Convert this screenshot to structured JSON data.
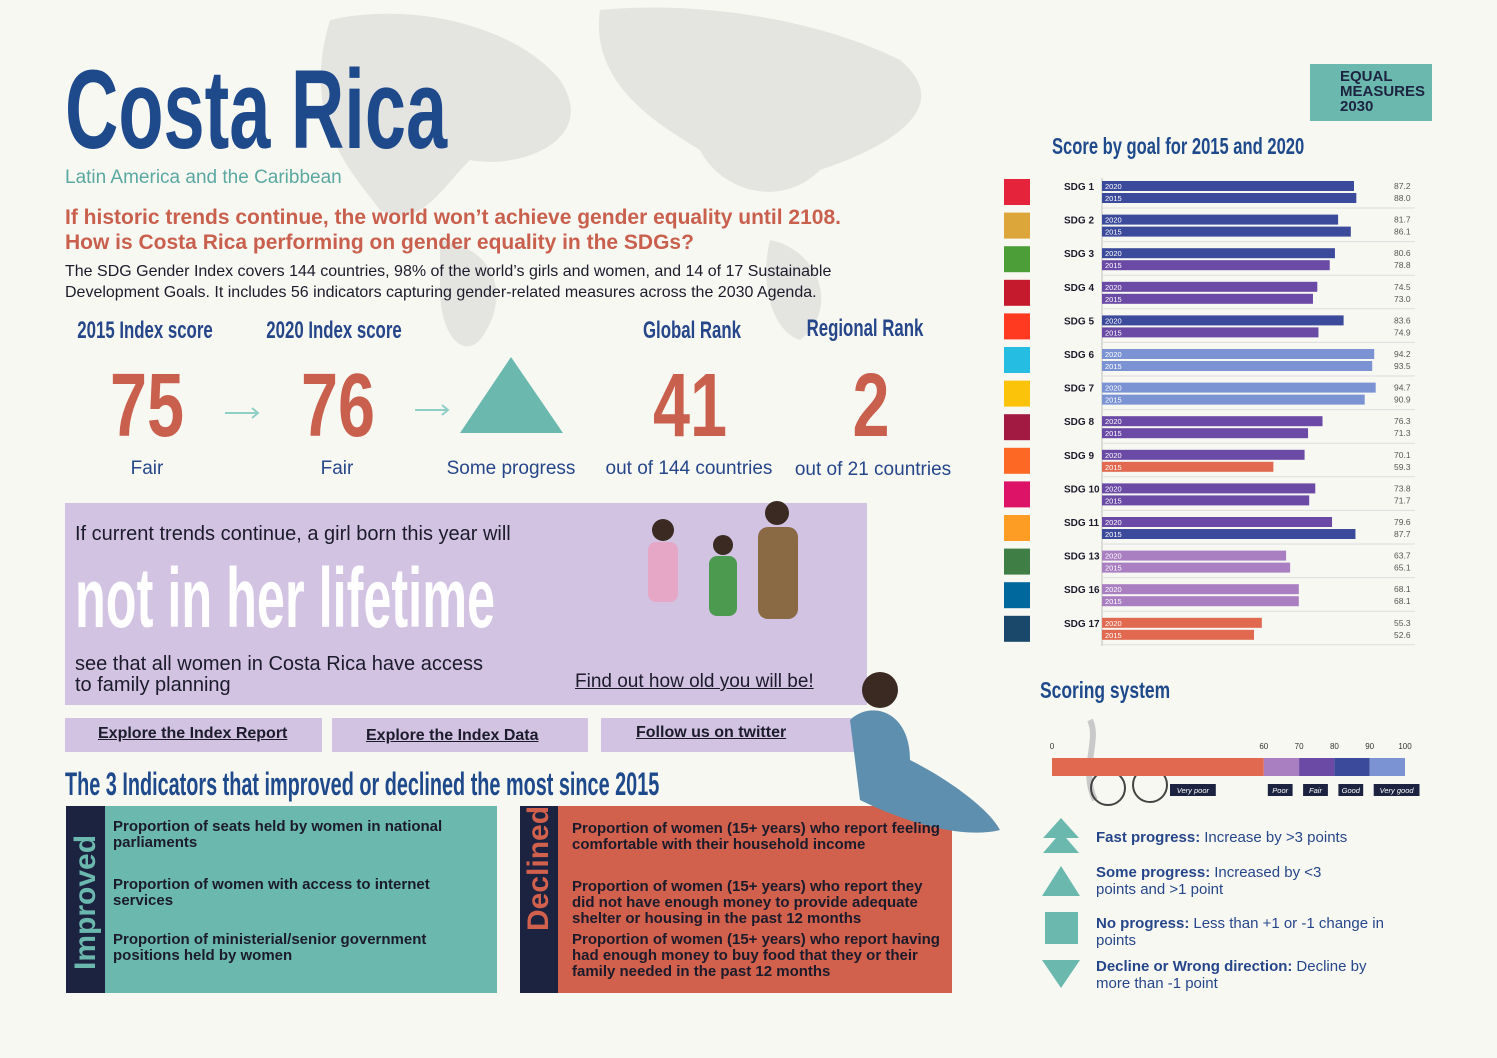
{
  "header": {
    "title": "Costa Rica",
    "region": "Latin America and the Caribbean",
    "logo": [
      "EQUAL",
      "MEASURES",
      "2030"
    ]
  },
  "intro": {
    "headline": [
      "If historic trends continue, the world won’t achieve gender equality until 2108.",
      "How is Costa Rica performing on gender equality in the SDGs?"
    ],
    "body": [
      "The SDG Gender Index covers 144 countries, 98% of the world’s girls and women, and 14 of 17 Sustainable",
      "Development Goals. It includes 56 indicators capturing gender-related measures across the 2030 Agenda."
    ]
  },
  "scores": [
    {
      "label": "2015 Index score",
      "value": 75,
      "caption": "Fair"
    },
    {
      "label": "2020 Index score",
      "value": 76,
      "caption": "Fair"
    },
    {
      "caption": "Some progress"
    },
    {
      "label": "Global Rank",
      "value": 41,
      "caption": "out of 144 countries"
    },
    {
      "label": "Regional Rank",
      "value": 2,
      "caption": "out of 21 countries"
    }
  ],
  "lifetime": {
    "lead": "If current trends continue, a girl born this year will",
    "headline": "not in her lifetime",
    "rest": [
      "see that all women in Costa Rica have access",
      "to family planning"
    ],
    "link": "Find out how old you will be!"
  },
  "links": [
    "Explore the Index Report",
    "Explore the Index Data",
    "Follow us on twitter"
  ],
  "indicators": {
    "title": "The 3 Indicators that improved or declined the most since 2015",
    "improved": {
      "label": "Improved",
      "items": [
        "Proportion of seats held by women in national parliaments",
        "Proportion of women with access to internet services",
        "Proportion of ministerial/senior government positions held by women"
      ]
    },
    "declined": {
      "label": "Declined",
      "items": [
        "Proportion of women (15+ years) who report feeling comfortable with their household income",
        "Proportion of women (15+ years) who report they did not have enough money to provide adequate shelter or housing in the past 12 months",
        "Proportion of women (15+ years) who report having had enough money to buy food that they or their family needed in the past 12 months"
      ]
    }
  },
  "goal_chart": {
    "title": "Score by goal for 2015 and 2020",
    "categories": [
      "SDG 1",
      "SDG 2",
      "SDG 3",
      "SDG 4",
      "SDG 5",
      "SDG 6",
      "SDG 7",
      "SDG 8",
      "SDG 9",
      "SDG 10",
      "SDG 11",
      "SDG 13",
      "SDG 16",
      "SDG 17"
    ],
    "series": [
      {
        "name": "2020",
        "values": [
          87.2,
          81.7,
          80.6,
          74.5,
          83.6,
          94.2,
          94.7,
          76.3,
          70.1,
          73.8,
          79.6,
          63.7,
          68.1,
          55.3
        ],
        "value_labels": [
          "87.2",
          "81.7",
          "80.6",
          "74.5",
          "83.6",
          "94.2",
          "94.7",
          "76.3",
          "70.1",
          "73.8",
          "79.6",
          "63.7",
          "68.1",
          "55.3"
        ]
      },
      {
        "name": "2015",
        "values": [
          88.0,
          86.1,
          78.8,
          73.0,
          74.9,
          93.5,
          90.9,
          71.3,
          59.3,
          71.7,
          87.7,
          65.1,
          68.1,
          52.6
        ],
        "value_labels": [
          "88.0",
          "86.1",
          "78.8",
          "73.0",
          "74.9",
          "93.5",
          "90.9",
          "71.3",
          "59.3",
          "71.7",
          "87.7",
          "65.1",
          "68.1",
          "52.6"
        ]
      }
    ]
  },
  "scoring": {
    "title": "Scoring system",
    "ticks": [
      0,
      60,
      70,
      80,
      90,
      100
    ],
    "bands": [
      {
        "label": "Very poor",
        "color": "#e0694f"
      },
      {
        "label": "Poor",
        "color": "#a97fc2"
      },
      {
        "label": "Fair",
        "color": "#6a4aa5"
      },
      {
        "label": "Good",
        "color": "#3b4a9b"
      },
      {
        "label": "Very good",
        "color": "#7b93d3"
      }
    ],
    "legend": [
      {
        "term": "Fast progress:",
        "text": "Increase by >3 points"
      },
      {
        "term": "Some progress:",
        "text": "Increased by <3 points and >1 point"
      },
      {
        "term": "No progress:",
        "text": "Less than +1 or -1 change in points"
      },
      {
        "term": "Decline or Wrong direction:",
        "text": "Decline by more than -1 point"
      }
    ]
  }
}
